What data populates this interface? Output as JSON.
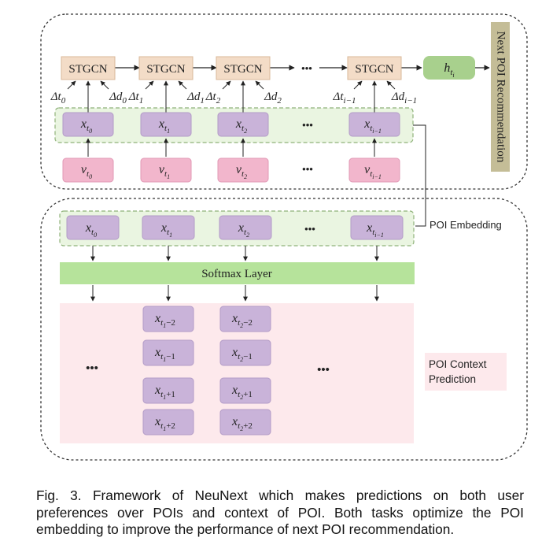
{
  "stgcn_label": "STGCN",
  "next_poi_label": "Next POI Recommendation",
  "hidden_state": {
    "base": "h",
    "sub": "t",
    "subsub": "i"
  },
  "ellipsis": "•••",
  "time_labels": [
    {
      "base": "Δt",
      "sub": "0"
    },
    {
      "base": "Δt",
      "sub": "1"
    },
    {
      "base": "Δt",
      "sub": "2"
    },
    {
      "base": "Δt",
      "sub": "i−1"
    }
  ],
  "dist_labels": [
    {
      "base": "Δd",
      "sub": "0"
    },
    {
      "base": "Δd",
      "sub": "1"
    },
    {
      "base": "Δd",
      "sub": "2"
    },
    {
      "base": "Δd",
      "sub": "i−1"
    }
  ],
  "embedding_nodes": [
    {
      "base": "x",
      "sub": "t",
      "subsub": "0"
    },
    {
      "base": "x",
      "sub": "t",
      "subsub": "1"
    },
    {
      "base": "x",
      "sub": "t",
      "subsub": "2"
    },
    {
      "base": "x",
      "sub": "t",
      "subsub": "i−1"
    }
  ],
  "poi_nodes": [
    {
      "base": "v",
      "sub": "t",
      "subsub": "0"
    },
    {
      "base": "v",
      "sub": "t",
      "subsub": "1"
    },
    {
      "base": "v",
      "sub": "t",
      "subsub": "2"
    },
    {
      "base": "v",
      "sub": "t",
      "subsub": "i−1"
    }
  ],
  "poi_embedding_label": "POI Embedding",
  "softmax_label": "Softmax Layer",
  "context_nodes_1": [
    {
      "base": "x",
      "sub": "t",
      "subsub": "1",
      "suffix": "−2"
    },
    {
      "base": "x",
      "sub": "t",
      "subsub": "1",
      "suffix": "−1"
    },
    {
      "base": "x",
      "sub": "t",
      "subsub": "1",
      "suffix": "+1"
    },
    {
      "base": "x",
      "sub": "t",
      "subsub": "1",
      "suffix": "+2"
    }
  ],
  "context_nodes_2": [
    {
      "base": "x",
      "sub": "t",
      "subsub": "2",
      "suffix": "−2"
    },
    {
      "base": "x",
      "sub": "t",
      "subsub": "2",
      "suffix": "−1"
    },
    {
      "base": "x",
      "sub": "t",
      "subsub": "2",
      "suffix": "+1"
    },
    {
      "base": "x",
      "sub": "t",
      "subsub": "2",
      "suffix": "+2"
    }
  ],
  "context_prediction_label": [
    "POI Context",
    "Prediction"
  ],
  "caption": "Fig. 3. Framework of NeuNext which makes predictions on both user preferences over POIs and context of POI. Both tasks optimize the POI embedding to improve the performance of next POI recommendation.",
  "colors": {
    "stgcn_fill": "#f3dcc7",
    "stgcn_stroke": "#d9b89a",
    "hidden_fill": "#a8d08d",
    "next_poi_fill": "#c4bd97",
    "embedding_fill": "#c9b3d9",
    "embedding_stroke": "#b39cc7",
    "poi_fill": "#f2b6cc",
    "poi_stroke": "#e29ab6",
    "emb_group_fill": "#eaf5e1",
    "emb_group_stroke": "#8fb27a",
    "softmax_fill": "#b6e39b",
    "context_bg": "#fde9ec"
  }
}
